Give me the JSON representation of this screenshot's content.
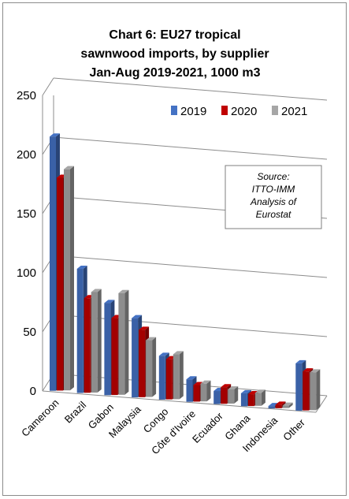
{
  "chart_data": {
    "type": "bar",
    "title_lines": [
      "Chart 6: EU27 tropical",
      "sawnwood imports, by supplier",
      "Jan-Aug 2019-2021, 1000 m3"
    ],
    "categories": [
      "Cameroon",
      "Brazil",
      "Gabon",
      "Malaysia",
      "Congo",
      "Côte d'Ivoire",
      "Ecuador",
      "Ghana",
      "Indonesia",
      "Other"
    ],
    "series": [
      {
        "name": "2019",
        "color": "#4472c4",
        "values": [
          215,
          105,
          78,
          67,
          37,
          19,
          11,
          11,
          2,
          40
        ]
      },
      {
        "name": "2020",
        "color": "#c00000",
        "values": [
          180,
          80,
          65,
          57,
          34,
          14,
          14,
          10,
          3,
          33
        ]
      },
      {
        "name": "2021",
        "color": "#a6a6a6",
        "values": [
          187,
          85,
          86,
          48,
          38,
          15,
          12,
          11,
          2,
          32
        ]
      }
    ],
    "ylim": [
      0,
      250
    ],
    "yticks": [
      "0",
      "50",
      "100",
      "150",
      "200",
      "250"
    ],
    "grid": true,
    "legend_position": "top-right",
    "annotation_lines": [
      "Source:",
      "ITTO-IMM",
      "Analysis of",
      "Eurostat"
    ]
  }
}
